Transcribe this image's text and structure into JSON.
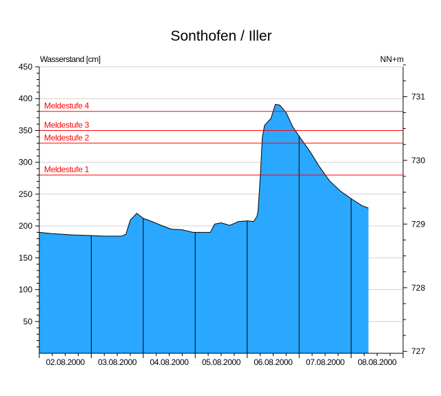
{
  "chart_data": {
    "type": "area",
    "title": "Sonthofen / Iller",
    "ylabel": "Wasserstand [cm]",
    "ylabel_right": "NN+m",
    "ylim": [
      0,
      450
    ],
    "yticks": [
      50,
      100,
      150,
      200,
      250,
      300,
      350,
      400,
      450
    ],
    "ylim_right": [
      727,
      731.5
    ],
    "yticks_right": [
      727,
      728,
      729,
      730,
      731
    ],
    "xlim": [
      "02.08.2000 00:00",
      "09.08.2000 00:00"
    ],
    "xtick_labels": [
      "02.08.2000",
      "03.08.2000",
      "04.08.2000",
      "05.08.2000",
      "06.08.2000",
      "07.08.2000",
      "08.08.2000"
    ],
    "grid": true,
    "fill_color": "#2aa8ff",
    "threshold_color": "#ff0000",
    "thresholds": [
      {
        "label": "Meldestufe 4",
        "value": 380
      },
      {
        "label": "Meldestufe 3",
        "value": 350
      },
      {
        "label": "Meldestufe 2",
        "value": 330
      },
      {
        "label": "Meldestufe 1",
        "value": 280
      }
    ],
    "points": [
      [
        "02.08.2000 00:00",
        190
      ],
      [
        "02.08.2000 06:00",
        188
      ],
      [
        "02.08.2000 15:00",
        186
      ],
      [
        "03.08.2000 00:00",
        185
      ],
      [
        "03.08.2000 06:00",
        184
      ],
      [
        "03.08.2000 14:00",
        184
      ],
      [
        "03.08.2000 16:00",
        187
      ],
      [
        "03.08.2000 18:00",
        209
      ],
      [
        "03.08.2000 21:00",
        220
      ],
      [
        "04.08.2000 00:00",
        212
      ],
      [
        "04.08.2000 04:00",
        207
      ],
      [
        "04.08.2000 09:00",
        200
      ],
      [
        "04.08.2000 13:00",
        195
      ],
      [
        "04.08.2000 18:00",
        194
      ],
      [
        "04.08.2000 23:00",
        190
      ],
      [
        "05.08.2000 07:00",
        190
      ],
      [
        "05.08.2000 09:00",
        203
      ],
      [
        "05.08.2000 12:00",
        205
      ],
      [
        "05.08.2000 16:00",
        201
      ],
      [
        "05.08.2000 20:00",
        207
      ],
      [
        "06.08.2000 00:00",
        208
      ],
      [
        "06.08.2000 03:00",
        207
      ],
      [
        "06.08.2000 04:30",
        215
      ],
      [
        "06.08.2000 05:00",
        223
      ],
      [
        "06.08.2000 06:00",
        274
      ],
      [
        "06.08.2000 07:00",
        339
      ],
      [
        "06.08.2000 08:00",
        358
      ],
      [
        "06.08.2000 11:00",
        369
      ],
      [
        "06.08.2000 13:00",
        391
      ],
      [
        "06.08.2000 15:00",
        390
      ],
      [
        "06.08.2000 18:00",
        378
      ],
      [
        "06.08.2000 21:00",
        356
      ],
      [
        "07.08.2000 00:00",
        341
      ],
      [
        "07.08.2000 05:00",
        317
      ],
      [
        "07.08.2000 09:00",
        295
      ],
      [
        "07.08.2000 14:00",
        271
      ],
      [
        "07.08.2000 19:00",
        255
      ],
      [
        "08.08.2000 00:00",
        243
      ],
      [
        "08.08.2000 05:00",
        232
      ],
      [
        "08.08.2000 08:00",
        228
      ]
    ]
  }
}
